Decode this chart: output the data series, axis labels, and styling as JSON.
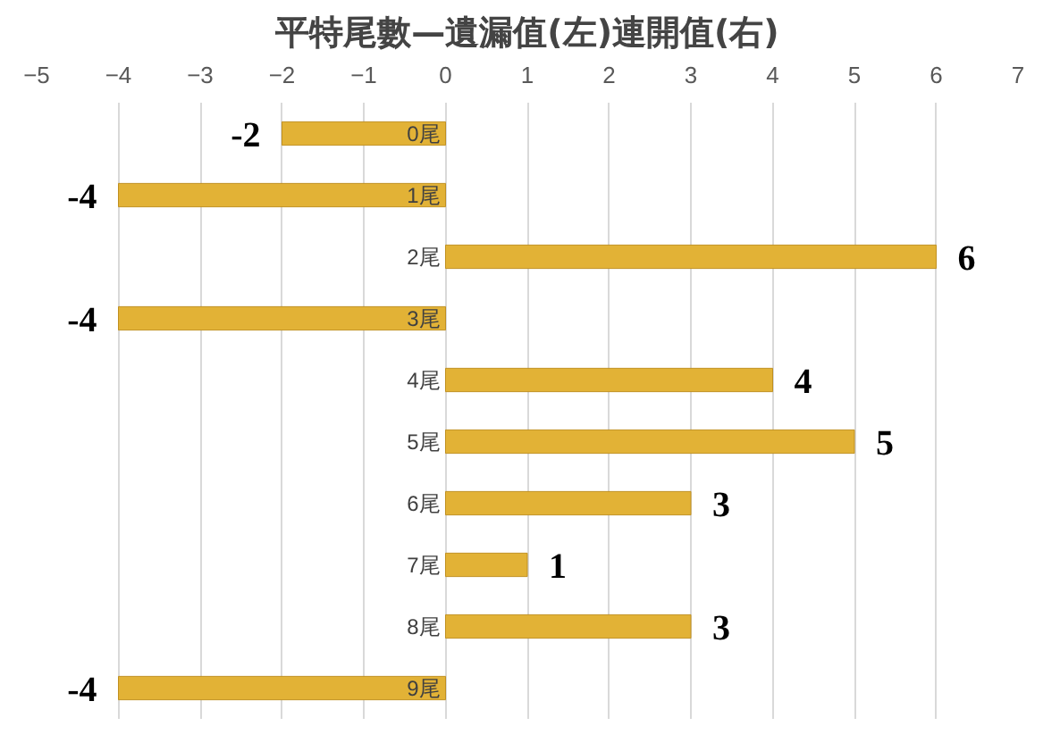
{
  "chart_data": {
    "type": "bar",
    "orientation": "horizontal",
    "title": "平特尾數—遺漏值(左)連開值(右)",
    "categories": [
      "0尾",
      "1尾",
      "2尾",
      "3尾",
      "4尾",
      "5尾",
      "6尾",
      "7尾",
      "8尾",
      "9尾"
    ],
    "values": [
      -2,
      -4,
      6,
      -4,
      4,
      5,
      3,
      1,
      3,
      -4
    ],
    "color": "#e2b236",
    "xlim": [
      -5,
      7
    ],
    "xticks": [
      -5,
      -4,
      -3,
      -2,
      -1,
      0,
      1,
      2,
      3,
      4,
      5,
      6,
      7
    ],
    "grid": "x",
    "data_labels": true
  }
}
